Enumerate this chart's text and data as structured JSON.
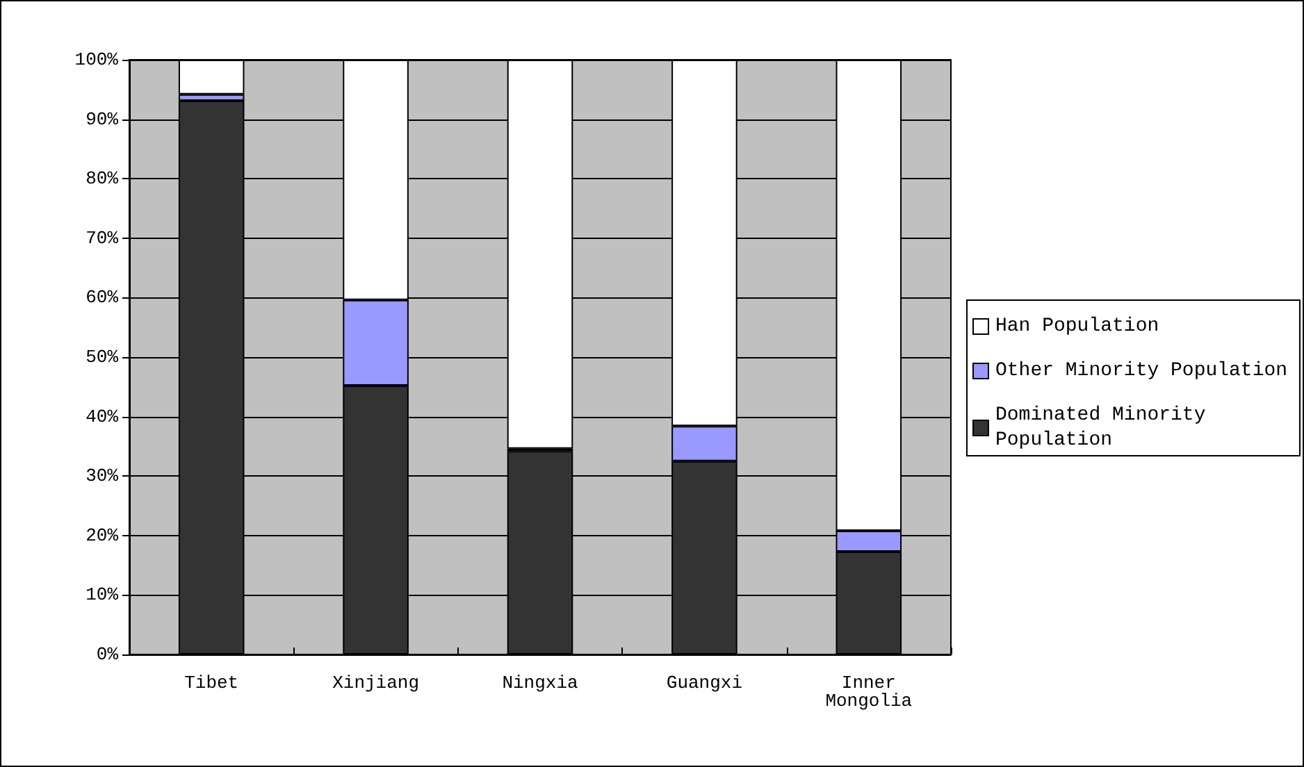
{
  "chart_data": {
    "type": "bar",
    "stacked": true,
    "categories": [
      "Tibet",
      "Xinjiang",
      "Ningxia",
      "Guangxi",
      "Inner Mongolia"
    ],
    "series": [
      {
        "name": "Dominated Minority Population",
        "color": "#333333",
        "values": [
          93.1,
          45.2,
          34.2,
          32.5,
          17.3
        ]
      },
      {
        "name": "Other Minority Population",
        "color": "#9999ff",
        "values": [
          1.1,
          14.4,
          0.4,
          5.9,
          3.5
        ]
      },
      {
        "name": "Han Population",
        "color": "#ffffff",
        "values": [
          5.8,
          40.4,
          65.4,
          61.6,
          79.2
        ]
      }
    ],
    "ylim": [
      0,
      100
    ],
    "yticks": [
      {
        "value": 0,
        "label": "0%"
      },
      {
        "value": 10,
        "label": "10%"
      },
      {
        "value": 20,
        "label": "20%"
      },
      {
        "value": 30,
        "label": "30%"
      },
      {
        "value": 40,
        "label": "40%"
      },
      {
        "value": 50,
        "label": "50%"
      },
      {
        "value": 60,
        "label": "60%"
      },
      {
        "value": 70,
        "label": "70%"
      },
      {
        "value": 80,
        "label": "80%"
      },
      {
        "value": 90,
        "label": "90%"
      },
      {
        "value": 100,
        "label": "100%"
      }
    ],
    "grid": "y",
    "legend": "right"
  }
}
